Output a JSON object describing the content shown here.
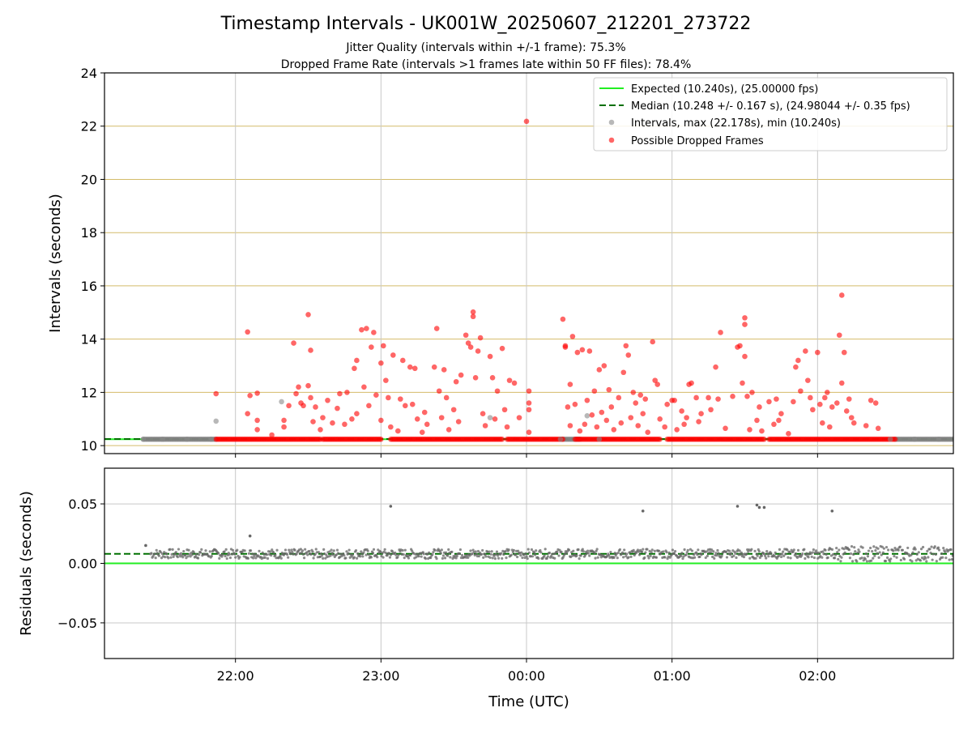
{
  "chart_data": [
    {
      "type": "scatter",
      "title": "Timestamp Intervals - UK001W_20250607_212201_273722",
      "subtitle_lines": [
        "Jitter Quality (intervals within +/-1 frame): 75.3%",
        "Dropped Frame Rate (intervals >1 frames late within 50 FF files): 78.4%"
      ],
      "ylabel": "Intervals (seconds)",
      "ylim": [
        9.7,
        24
      ],
      "xlim": [
        "21:06",
        "02:56"
      ],
      "yticks": [
        10,
        12,
        14,
        16,
        18,
        20,
        22,
        24
      ],
      "xticks": [
        "22:00",
        "23:00",
        "00:00",
        "01:00",
        "02:00"
      ],
      "grid": "y lines gold, x lines gray",
      "legend_position": "upper-right",
      "legend": [
        "Expected (10.240s), (25.00000 fps)",
        "Median (10.248 +/- 0.167 s), (24.98044 +/- 0.35 fps)",
        "Intervals, max (22.178s), min (10.240s)",
        "Possible Dropped Frames"
      ],
      "expected_line": 10.24,
      "median_line": 10.248,
      "series": [
        {
          "name": "Intervals",
          "color": "#808080",
          "points": [
            [
              "21:22",
              10.24
            ],
            [
              "21:30",
              10.24
            ],
            [
              "21:40",
              10.24
            ],
            [
              "21:50",
              10.24
            ],
            [
              "21:52",
              10.92
            ],
            [
              "22:19",
              11.65
            ],
            [
              "23:45",
              11.05
            ],
            [
              "00:14",
              10.24
            ],
            [
              "00:25",
              11.12
            ],
            [
              "00:30",
              10.24
            ],
            [
              "02:30",
              10.24
            ],
            [
              "02:40",
              10.24
            ],
            [
              "02:50",
              10.24
            ]
          ]
        },
        {
          "name": "Possible Dropped Frames",
          "color": "#ff0000",
          "points": [
            [
              "21:52",
              11.95
            ],
            [
              "22:05",
              14.27
            ],
            [
              "22:05",
              11.2
            ],
            [
              "22:06",
              11.88
            ],
            [
              "22:09",
              11.97
            ],
            [
              "22:09",
              10.95
            ],
            [
              "22:09",
              10.6
            ],
            [
              "22:15",
              10.4
            ],
            [
              "22:20",
              10.95
            ],
            [
              "22:20",
              10.7
            ],
            [
              "22:22",
              11.5
            ],
            [
              "22:24",
              13.85
            ],
            [
              "22:25",
              11.95
            ],
            [
              "22:26",
              12.2
            ],
            [
              "22:27",
              11.6
            ],
            [
              "22:28",
              11.5
            ],
            [
              "22:30",
              14.92
            ],
            [
              "22:30",
              12.25
            ],
            [
              "22:31",
              13.58
            ],
            [
              "22:31",
              11.8
            ],
            [
              "22:32",
              10.9
            ],
            [
              "22:33",
              11.45
            ],
            [
              "22:35",
              10.6
            ],
            [
              "22:36",
              11.05
            ],
            [
              "22:38",
              11.7
            ],
            [
              "22:40",
              10.85
            ],
            [
              "22:42",
              11.4
            ],
            [
              "22:43",
              11.95
            ],
            [
              "22:45",
              10.8
            ],
            [
              "22:46",
              12.0
            ],
            [
              "22:48",
              11.0
            ],
            [
              "22:49",
              12.9
            ],
            [
              "22:50",
              13.2
            ],
            [
              "22:50",
              11.2
            ],
            [
              "22:52",
              14.35
            ],
            [
              "22:53",
              12.2
            ],
            [
              "22:54",
              14.4
            ],
            [
              "22:55",
              11.5
            ],
            [
              "22:56",
              13.7
            ],
            [
              "22:57",
              14.25
            ],
            [
              "22:58",
              11.9
            ],
            [
              "23:00",
              13.1
            ],
            [
              "23:00",
              10.95
            ],
            [
              "23:01",
              13.75
            ],
            [
              "23:02",
              12.45
            ],
            [
              "23:03",
              11.8
            ],
            [
              "23:04",
              10.7
            ],
            [
              "23:05",
              13.4
            ],
            [
              "23:07",
              10.55
            ],
            [
              "23:08",
              11.75
            ],
            [
              "23:09",
              13.2
            ],
            [
              "23:10",
              11.5
            ],
            [
              "23:12",
              12.95
            ],
            [
              "23:13",
              11.55
            ],
            [
              "23:14",
              12.9
            ],
            [
              "23:15",
              11.0
            ],
            [
              "23:17",
              10.5
            ],
            [
              "23:18",
              11.25
            ],
            [
              "23:19",
              10.8
            ],
            [
              "23:22",
              12.95
            ],
            [
              "23:23",
              14.4
            ],
            [
              "23:24",
              12.05
            ],
            [
              "23:25",
              11.05
            ],
            [
              "23:26",
              12.85
            ],
            [
              "23:27",
              11.8
            ],
            [
              "23:28",
              10.6
            ],
            [
              "23:30",
              11.35
            ],
            [
              "23:31",
              12.4
            ],
            [
              "23:32",
              10.9
            ],
            [
              "23:33",
              12.65
            ],
            [
              "23:35",
              14.15
            ],
            [
              "23:36",
              13.85
            ],
            [
              "23:37",
              13.7
            ],
            [
              "23:38",
              15.02
            ],
            [
              "23:38",
              14.85
            ],
            [
              "23:39",
              12.55
            ],
            [
              "23:40",
              13.55
            ],
            [
              "23:41",
              14.05
            ],
            [
              "23:42",
              11.2
            ],
            [
              "23:43",
              10.75
            ],
            [
              "23:45",
              13.35
            ],
            [
              "23:46",
              12.55
            ],
            [
              "23:47",
              11.0
            ],
            [
              "23:48",
              12.05
            ],
            [
              "23:50",
              13.65
            ],
            [
              "23:51",
              11.35
            ],
            [
              "23:52",
              10.7
            ],
            [
              "23:53",
              12.45
            ],
            [
              "23:55",
              12.35
            ],
            [
              "23:57",
              11.05
            ],
            [
              "00:00",
              22.18
            ],
            [
              "00:01",
              12.05
            ],
            [
              "00:01",
              11.6
            ],
            [
              "00:01",
              11.35
            ],
            [
              "00:01",
              10.5
            ],
            [
              "00:15",
              14.75
            ],
            [
              "00:16",
              13.7
            ],
            [
              "00:16",
              13.75
            ],
            [
              "00:17",
              11.45
            ],
            [
              "00:18",
              12.3
            ],
            [
              "00:18",
              10.75
            ],
            [
              "00:19",
              14.1
            ],
            [
              "00:20",
              11.55
            ],
            [
              "00:21",
              13.5
            ],
            [
              "00:22",
              10.55
            ],
            [
              "00:23",
              13.6
            ],
            [
              "00:24",
              10.8
            ],
            [
              "00:25",
              11.7
            ],
            [
              "00:26",
              13.55
            ],
            [
              "00:27",
              11.15
            ],
            [
              "00:28",
              12.05
            ],
            [
              "00:29",
              10.7
            ],
            [
              "00:30",
              12.85
            ],
            [
              "00:31",
              11.25
            ],
            [
              "00:32",
              13.0
            ],
            [
              "00:33",
              10.95
            ],
            [
              "00:34",
              12.1
            ],
            [
              "00:35",
              11.45
            ],
            [
              "00:36",
              10.6
            ],
            [
              "00:38",
              11.8
            ],
            [
              "00:39",
              10.85
            ],
            [
              "00:40",
              12.75
            ],
            [
              "00:41",
              13.75
            ],
            [
              "00:42",
              13.4
            ],
            [
              "00:43",
              11.05
            ],
            [
              "00:44",
              12.0
            ],
            [
              "00:45",
              11.6
            ],
            [
              "00:46",
              10.75
            ],
            [
              "00:47",
              11.9
            ],
            [
              "00:48",
              11.2
            ],
            [
              "00:49",
              11.75
            ],
            [
              "00:50",
              10.5
            ],
            [
              "00:52",
              13.9
            ],
            [
              "00:53",
              12.45
            ],
            [
              "00:54",
              12.3
            ],
            [
              "00:55",
              11.0
            ],
            [
              "00:57",
              10.7
            ],
            [
              "00:58",
              11.55
            ],
            [
              "01:00",
              11.7
            ],
            [
              "01:01",
              11.7
            ],
            [
              "01:02",
              10.6
            ],
            [
              "01:04",
              11.3
            ],
            [
              "01:05",
              10.8
            ],
            [
              "01:06",
              11.05
            ],
            [
              "01:07",
              12.3
            ],
            [
              "01:08",
              12.35
            ],
            [
              "01:10",
              11.8
            ],
            [
              "01:11",
              10.9
            ],
            [
              "01:12",
              11.2
            ],
            [
              "01:15",
              11.8
            ],
            [
              "01:16",
              11.35
            ],
            [
              "01:18",
              12.95
            ],
            [
              "01:19",
              11.75
            ],
            [
              "01:20",
              14.25
            ],
            [
              "01:22",
              10.65
            ],
            [
              "01:25",
              11.85
            ],
            [
              "01:27",
              13.7
            ],
            [
              "01:28",
              13.75
            ],
            [
              "01:29",
              12.35
            ],
            [
              "01:30",
              14.8
            ],
            [
              "01:30",
              14.55
            ],
            [
              "01:30",
              13.35
            ],
            [
              "01:31",
              11.85
            ],
            [
              "01:32",
              10.6
            ],
            [
              "01:33",
              12.0
            ],
            [
              "01:35",
              10.95
            ],
            [
              "01:36",
              11.45
            ],
            [
              "01:37",
              10.55
            ],
            [
              "01:40",
              11.65
            ],
            [
              "01:42",
              10.8
            ],
            [
              "01:43",
              11.75
            ],
            [
              "01:44",
              10.95
            ],
            [
              "01:45",
              11.2
            ],
            [
              "01:48",
              10.45
            ],
            [
              "01:50",
              11.65
            ],
            [
              "01:51",
              12.95
            ],
            [
              "01:52",
              13.2
            ],
            [
              "01:53",
              12.05
            ],
            [
              "01:55",
              13.55
            ],
            [
              "01:56",
              12.45
            ],
            [
              "01:57",
              11.8
            ],
            [
              "01:58",
              11.35
            ],
            [
              "02:00",
              13.5
            ],
            [
              "02:01",
              11.55
            ],
            [
              "02:02",
              10.85
            ],
            [
              "02:03",
              11.8
            ],
            [
              "02:04",
              12.0
            ],
            [
              "02:05",
              10.7
            ],
            [
              "02:06",
              11.45
            ],
            [
              "02:08",
              11.6
            ],
            [
              "02:09",
              14.15
            ],
            [
              "02:10",
              15.65
            ],
            [
              "02:10",
              12.35
            ],
            [
              "02:11",
              13.5
            ],
            [
              "02:12",
              11.3
            ],
            [
              "02:13",
              11.75
            ],
            [
              "02:14",
              11.05
            ],
            [
              "02:15",
              10.85
            ],
            [
              "02:20",
              10.75
            ],
            [
              "02:22",
              11.7
            ],
            [
              "02:24",
              11.6
            ],
            [
              "02:25",
              10.65
            ]
          ]
        }
      ],
      "baseline_band_red": [
        [
          "21:52",
          "22:35"
        ],
        [
          "22:36",
          "23:00"
        ],
        [
          "23:04",
          "23:50"
        ],
        [
          "23:52",
          "00:15"
        ],
        [
          "00:20",
          "00:55"
        ],
        [
          "00:58",
          "01:38"
        ],
        [
          "01:40",
          "02:32"
        ]
      ]
    },
    {
      "type": "scatter",
      "ylabel": "Residuals (seconds)",
      "xlabel": "Time (UTC)",
      "ylim": [
        -0.08,
        0.08
      ],
      "yticks": [
        -0.05,
        0,
        0.05
      ],
      "ytick_labels": [
        "−0.05",
        "0.00",
        "0.05"
      ],
      "xticks": [
        "22:00",
        "23:00",
        "00:00",
        "01:00",
        "02:00"
      ],
      "grid": true,
      "expected_line": 0,
      "median_line": 0.008,
      "series": [
        {
          "name": "Residuals",
          "color": "#666666",
          "points": [
            [
              "21:23",
              0.015
            ],
            [
              "22:06",
              0.023
            ],
            [
              "23:04",
              0.048
            ],
            [
              "00:48",
              0.044
            ],
            [
              "01:27",
              0.048
            ],
            [
              "01:35",
              0.049
            ],
            [
              "01:36",
              0.047
            ],
            [
              "01:38",
              0.047
            ],
            [
              "02:06",
              0.044
            ]
          ]
        }
      ],
      "baseline_band": 0.008
    }
  ]
}
